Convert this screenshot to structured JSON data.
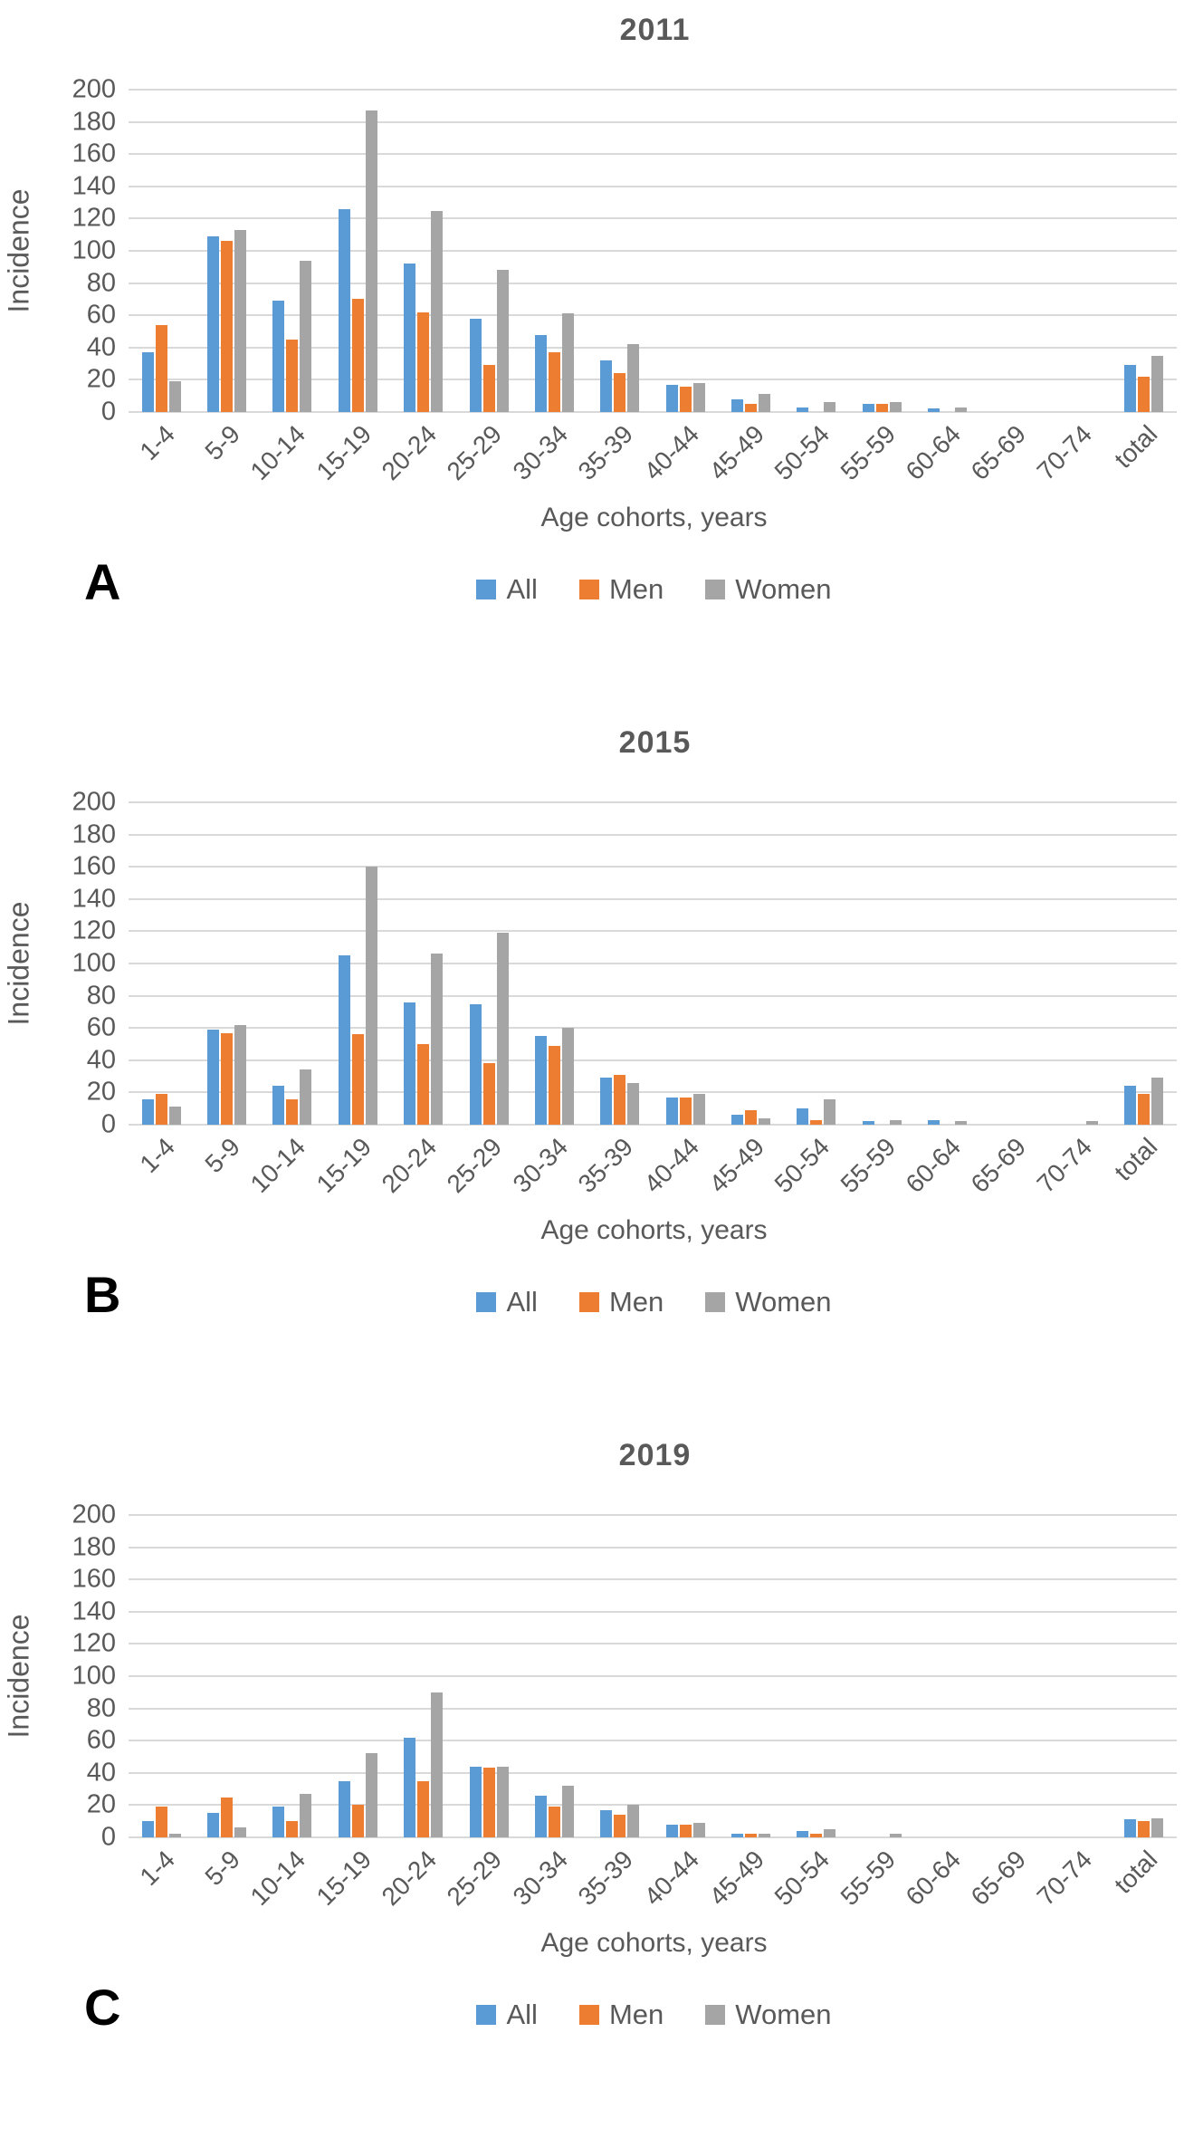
{
  "figure": {
    "ylabel": "Incidence",
    "xlabel": "Age cohorts, years",
    "legend": [
      "All",
      "Men",
      "Women"
    ],
    "yticks": [
      0,
      20,
      40,
      60,
      80,
      100,
      120,
      140,
      160,
      180,
      200
    ],
    "categories": [
      "1-4",
      "5-9",
      "10-14",
      "15-19",
      "20-24",
      "25-29",
      "30-34",
      "35-39",
      "40-44",
      "45-49",
      "50-54",
      "55-59",
      "60-64",
      "65-69",
      "70-74",
      "total"
    ],
    "colors": {
      "all": "#5B9BD5",
      "men": "#ED7D31",
      "women": "#A5A5A5",
      "axis_text": "#595959",
      "gridline": "#D9D9D9",
      "panel_letter": "#000000"
    }
  },
  "chart_data": [
    {
      "type": "bar",
      "letter": "A",
      "title": "2011",
      "xlabel": "Age cohorts, years",
      "ylabel": "Incidence",
      "ylim": [
        0,
        200
      ],
      "ytick_step": 20,
      "grid": true,
      "legend_position": "bottom",
      "categories": [
        "1-4",
        "5-9",
        "10-14",
        "15-19",
        "20-24",
        "25-29",
        "30-34",
        "35-39",
        "40-44",
        "45-49",
        "50-54",
        "55-59",
        "60-64",
        "65-69",
        "70-74",
        "total"
      ],
      "series": [
        {
          "name": "All",
          "color": "#5B9BD5",
          "values": [
            37,
            109,
            69,
            126,
            92,
            58,
            48,
            32,
            17,
            8,
            3,
            5,
            2,
            0,
            0,
            29
          ]
        },
        {
          "name": "Men",
          "color": "#ED7D31",
          "values": [
            54,
            106,
            45,
            70,
            62,
            29,
            37,
            24,
            16,
            5,
            0,
            5,
            0,
            0,
            0,
            22
          ]
        },
        {
          "name": "Women",
          "color": "#A5A5A5",
          "values": [
            19,
            113,
            94,
            187,
            125,
            88,
            61,
            42,
            18,
            11,
            6,
            6,
            3,
            0,
            0,
            35
          ]
        }
      ]
    },
    {
      "type": "bar",
      "letter": "B",
      "title": "2015",
      "xlabel": "Age cohorts, years",
      "ylabel": "Incidence",
      "ylim": [
        0,
        200
      ],
      "ytick_step": 20,
      "grid": true,
      "legend_position": "bottom",
      "categories": [
        "1-4",
        "5-9",
        "10-14",
        "15-19",
        "20-24",
        "25-29",
        "30-34",
        "35-39",
        "40-44",
        "45-49",
        "50-54",
        "55-59",
        "60-64",
        "65-69",
        "70-74",
        "total"
      ],
      "series": [
        {
          "name": "All",
          "color": "#5B9BD5",
          "values": [
            16,
            59,
            24,
            105,
            76,
            75,
            55,
            29,
            17,
            6,
            10,
            2,
            3,
            0,
            0,
            24
          ]
        },
        {
          "name": "Men",
          "color": "#ED7D31",
          "values": [
            19,
            57,
            16,
            56,
            50,
            38,
            49,
            31,
            17,
            9,
            3,
            0,
            0,
            0,
            0,
            19
          ]
        },
        {
          "name": "Women",
          "color": "#A5A5A5",
          "values": [
            11,
            62,
            34,
            160,
            106,
            119,
            60,
            26,
            19,
            4,
            16,
            3,
            2,
            0,
            2,
            29
          ]
        }
      ]
    },
    {
      "type": "bar",
      "letter": "C",
      "title": "2019",
      "xlabel": "Age cohorts, years",
      "ylabel": "Incidence",
      "ylim": [
        0,
        200
      ],
      "ytick_step": 20,
      "grid": true,
      "legend_position": "bottom",
      "categories": [
        "1-4",
        "5-9",
        "10-14",
        "15-19",
        "20-24",
        "25-29",
        "30-34",
        "35-39",
        "40-44",
        "45-49",
        "50-54",
        "55-59",
        "60-64",
        "65-69",
        "70-74",
        "total"
      ],
      "series": [
        {
          "name": "All",
          "color": "#5B9BD5",
          "values": [
            10,
            15,
            19,
            35,
            62,
            44,
            26,
            17,
            8,
            2,
            4,
            0,
            0,
            0,
            0,
            11
          ]
        },
        {
          "name": "Men",
          "color": "#ED7D31",
          "values": [
            19,
            25,
            10,
            20,
            35,
            43,
            19,
            14,
            8,
            2,
            2,
            0,
            0,
            0,
            0,
            10
          ]
        },
        {
          "name": "Women",
          "color": "#A5A5A5",
          "values": [
            2,
            6,
            27,
            52,
            90,
            44,
            32,
            20,
            9,
            2,
            5,
            2,
            0,
            0,
            0,
            12
          ]
        }
      ]
    }
  ]
}
